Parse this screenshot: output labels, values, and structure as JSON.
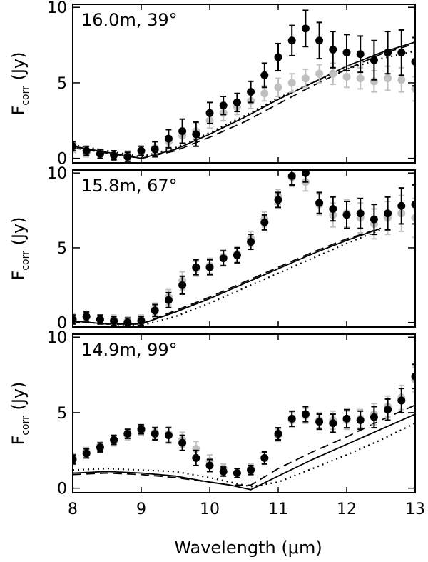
{
  "figure": {
    "xlabel": "Wavelength (μm)",
    "ylabel_main": "F",
    "ylabel_sub": "corr",
    "ylabel_unit": " (Jy)"
  },
  "chart_data": [
    {
      "type": "scatter",
      "title": "16.0m, 39°",
      "xlabel": "",
      "ylabel": "F_corr (Jy)",
      "xlim": [
        8,
        13
      ],
      "ylim": [
        -0.3,
        10.2
      ],
      "x_ticks": [
        "8",
        "9",
        "10",
        "11",
        "12",
        "13"
      ],
      "y_ticks": [
        {
          "value": 0,
          "label": "0"
        },
        {
          "value": 5,
          "label": "5"
        },
        {
          "value": 10,
          "label": "10"
        }
      ],
      "grid": false,
      "series": [
        {
          "style": "points",
          "color": "#c0c0c0",
          "x": [
            8.0,
            8.2,
            8.4,
            8.6,
            8.8,
            9.0,
            9.2,
            9.4,
            9.6,
            9.8,
            10.0,
            10.2,
            10.4,
            10.6,
            10.8,
            11.0,
            11.2,
            11.4,
            11.6,
            11.8,
            12.0,
            12.2,
            12.4,
            12.6,
            12.8,
            13.0
          ],
          "y": [
            0.7,
            0.4,
            0.3,
            0.2,
            0.2,
            0.5,
            0.7,
            1.1,
            1.5,
            1.8,
            2.5,
            3.0,
            3.4,
            3.8,
            4.3,
            4.7,
            5.0,
            5.3,
            5.6,
            5.6,
            5.4,
            5.3,
            5.1,
            5.3,
            5.2,
            4.6
          ],
          "yerr": [
            0.3,
            0.3,
            0.3,
            0.3,
            0.3,
            0.3,
            0.4,
            0.4,
            0.5,
            0.5,
            0.5,
            0.5,
            0.5,
            0.5,
            0.5,
            0.6,
            0.6,
            0.6,
            0.6,
            0.7,
            0.7,
            0.7,
            0.7,
            0.8,
            0.8,
            0.8
          ]
        },
        {
          "style": "points",
          "color": "#000000",
          "x": [
            8.0,
            8.2,
            8.4,
            8.6,
            8.8,
            9.0,
            9.2,
            9.4,
            9.6,
            9.8,
            10.0,
            10.2,
            10.4,
            10.6,
            10.8,
            11.0,
            11.2,
            11.4,
            11.6,
            11.8,
            12.0,
            12.2,
            12.4,
            12.6,
            12.8,
            13.0
          ],
          "y": [
            0.8,
            0.5,
            0.3,
            0.2,
            0.1,
            0.5,
            0.6,
            1.3,
            1.8,
            1.6,
            3.0,
            3.5,
            3.7,
            4.4,
            5.5,
            6.7,
            7.8,
            8.6,
            7.8,
            7.2,
            7.0,
            6.9,
            6.5,
            7.0,
            7.0,
            6.4
          ],
          "yerr": [
            0.3,
            0.3,
            0.3,
            0.3,
            0.3,
            0.3,
            0.5,
            0.6,
            0.8,
            0.8,
            0.7,
            0.6,
            0.6,
            0.7,
            0.8,
            0.9,
            1.0,
            1.2,
            1.2,
            1.2,
            1.2,
            1.2,
            1.3,
            1.4,
            1.5,
            1.6
          ]
        },
        {
          "style": "solid",
          "color": "#000000",
          "x": [
            8.0,
            9.0,
            9.5,
            10.0,
            10.5,
            11.0,
            11.5,
            12.0,
            12.5,
            13.0
          ],
          "y": [
            0.8,
            0.0,
            0.6,
            1.6,
            2.7,
            3.9,
            5.0,
            6.1,
            7.0,
            7.7
          ]
        },
        {
          "style": "dashed",
          "color": "#000000",
          "x": [
            8.0,
            9.0,
            9.5,
            10.0,
            10.5,
            11.0,
            11.5,
            12.0,
            12.5,
            13.0
          ],
          "y": [
            0.7,
            0.0,
            0.5,
            1.4,
            2.4,
            3.6,
            4.8,
            5.9,
            6.9,
            7.6
          ]
        },
        {
          "style": "dotted",
          "color": "#000000",
          "x": [
            8.0,
            9.0,
            9.5,
            10.0,
            10.5,
            11.0,
            11.5,
            12.0,
            12.5,
            13.0
          ],
          "y": [
            0.9,
            0.1,
            0.7,
            1.7,
            2.8,
            4.0,
            5.0,
            5.9,
            6.6,
            7.1
          ]
        }
      ]
    },
    {
      "type": "scatter",
      "title": "15.8m, 67°",
      "xlabel": "",
      "ylabel": "F_corr (Jy)",
      "xlim": [
        8,
        13
      ],
      "ylim": [
        -0.3,
        10.2
      ],
      "x_ticks": [
        "8",
        "9",
        "10",
        "11",
        "12",
        "13"
      ],
      "y_ticks": [
        {
          "value": 0,
          "label": "0"
        },
        {
          "value": 5,
          "label": "5"
        },
        {
          "value": 10,
          "label": "10"
        }
      ],
      "grid": false,
      "series": [
        {
          "style": "points",
          "color": "#c0c0c0",
          "x": [
            8.0,
            8.2,
            8.4,
            8.6,
            8.8,
            9.0,
            9.2,
            9.4,
            9.6,
            9.8,
            10.0,
            10.2,
            10.4,
            10.6,
            10.8,
            11.0,
            11.2,
            11.4,
            11.6,
            11.8,
            12.0,
            12.2,
            12.4,
            12.6,
            12.8,
            13.0
          ],
          "y": [
            0.3,
            0.4,
            0.2,
            0.2,
            0.1,
            0.2,
            0.9,
            1.7,
            2.8,
            3.6,
            3.8,
            4.4,
            4.6,
            5.6,
            6.9,
            8.4,
            9.7,
            9.4,
            7.9,
            7.2,
            7.3,
            7.0,
            6.6,
            7.0,
            7.3,
            7.0
          ],
          "yerr": [
            0.3,
            0.3,
            0.3,
            0.3,
            0.3,
            0.3,
            0.4,
            0.5,
            0.6,
            0.5,
            0.5,
            0.5,
            0.5,
            0.5,
            0.5,
            0.5,
            0.6,
            0.6,
            0.7,
            0.8,
            0.9,
            1.0,
            1.0,
            1.1,
            1.2,
            1.3
          ]
        },
        {
          "style": "points",
          "color": "#000000",
          "x": [
            8.0,
            8.2,
            8.4,
            8.6,
            8.8,
            9.0,
            9.2,
            9.4,
            9.6,
            9.8,
            10.0,
            10.2,
            10.4,
            10.6,
            10.8,
            11.0,
            11.2,
            11.4,
            11.6,
            11.8,
            12.0,
            12.2,
            12.4,
            12.6,
            12.8,
            13.0
          ],
          "y": [
            0.2,
            0.4,
            0.2,
            0.1,
            0.0,
            0.1,
            0.8,
            1.5,
            2.5,
            3.7,
            3.7,
            4.3,
            4.5,
            5.4,
            6.7,
            8.2,
            9.8,
            10.0,
            8.0,
            7.6,
            7.2,
            7.3,
            6.9,
            7.3,
            7.8,
            7.9
          ],
          "yerr": [
            0.3,
            0.3,
            0.3,
            0.3,
            0.3,
            0.3,
            0.4,
            0.5,
            0.6,
            0.5,
            0.5,
            0.5,
            0.5,
            0.5,
            0.5,
            0.5,
            0.6,
            0.6,
            0.7,
            0.8,
            0.9,
            1.0,
            1.0,
            1.1,
            1.2,
            1.3
          ]
        },
        {
          "style": "solid",
          "color": "#000000",
          "x": [
            8.0,
            8.5,
            9.0,
            9.5,
            10.0,
            10.5,
            11.0,
            11.5,
            12.0,
            12.5
          ],
          "y": [
            0.1,
            -0.1,
            -0.1,
            0.7,
            1.6,
            2.6,
            3.6,
            4.6,
            5.5,
            6.3
          ]
        },
        {
          "style": "dashed",
          "color": "#000000",
          "x": [
            8.0,
            8.5,
            9.0,
            9.5,
            10.0,
            10.5,
            11.0,
            11.5,
            12.0,
            12.5
          ],
          "y": [
            0.1,
            -0.1,
            -0.1,
            0.8,
            1.7,
            2.7,
            3.7,
            4.7,
            5.6,
            6.3
          ]
        },
        {
          "style": "dotted",
          "color": "#000000",
          "x": [
            8.0,
            8.5,
            9.0,
            9.5,
            10.0,
            10.5,
            11.0,
            11.5,
            12.0,
            12.5
          ],
          "y": [
            0.1,
            -0.1,
            -0.2,
            0.4,
            1.3,
            2.3,
            3.3,
            4.3,
            5.3,
            6.2
          ]
        }
      ]
    },
    {
      "type": "scatter",
      "title": "14.9m, 99°",
      "xlabel": "Wavelength (μm)",
      "ylabel": "F_corr (Jy)",
      "xlim": [
        8,
        13
      ],
      "ylim": [
        -0.3,
        10.2
      ],
      "x_ticks": [
        "8",
        "9",
        "10",
        "11",
        "12",
        "13"
      ],
      "y_ticks": [
        {
          "value": 0,
          "label": "0"
        },
        {
          "value": 5,
          "label": "5"
        },
        {
          "value": 10,
          "label": "10"
        }
      ],
      "grid": false,
      "series": [
        {
          "style": "points",
          "color": "#c0c0c0",
          "x": [
            8.0,
            8.2,
            8.4,
            8.6,
            8.8,
            9.0,
            9.2,
            9.4,
            9.6,
            9.8,
            10.0,
            10.2,
            10.4,
            10.6,
            10.8,
            11.0,
            11.2,
            11.4,
            11.6,
            11.8,
            12.0,
            12.2,
            12.4,
            12.6,
            12.8,
            13.0
          ],
          "y": [
            2.0,
            2.4,
            2.8,
            3.1,
            3.5,
            3.8,
            3.7,
            3.6,
            3.2,
            2.6,
            1.8,
            1.3,
            1.0,
            1.3,
            2.0,
            3.5,
            4.5,
            4.8,
            4.5,
            4.5,
            4.5,
            4.6,
            4.9,
            5.4,
            6.0,
            7.2
          ],
          "yerr": [
            0.3,
            0.3,
            0.3,
            0.3,
            0.3,
            0.3,
            0.4,
            0.5,
            0.5,
            0.5,
            0.4,
            0.3,
            0.3,
            0.3,
            0.4,
            0.4,
            0.5,
            0.5,
            0.5,
            0.6,
            0.6,
            0.6,
            0.7,
            0.7,
            0.8,
            0.8
          ]
        },
        {
          "style": "points",
          "color": "#000000",
          "x": [
            8.0,
            8.2,
            8.4,
            8.6,
            8.8,
            9.0,
            9.2,
            9.4,
            9.6,
            9.8,
            10.0,
            10.2,
            10.4,
            10.6,
            10.8,
            11.0,
            11.2,
            11.4,
            11.6,
            11.8,
            12.0,
            12.2,
            12.4,
            12.6,
            12.8,
            13.0
          ],
          "y": [
            1.9,
            2.3,
            2.7,
            3.2,
            3.6,
            3.9,
            3.6,
            3.5,
            3.0,
            2.0,
            1.5,
            1.1,
            1.0,
            1.2,
            2.0,
            3.6,
            4.6,
            4.9,
            4.4,
            4.3,
            4.6,
            4.5,
            4.7,
            5.2,
            5.8,
            7.4
          ],
          "yerr": [
            0.3,
            0.3,
            0.3,
            0.3,
            0.3,
            0.3,
            0.4,
            0.5,
            0.5,
            0.5,
            0.4,
            0.3,
            0.3,
            0.3,
            0.4,
            0.4,
            0.5,
            0.5,
            0.5,
            0.6,
            0.6,
            0.6,
            0.7,
            0.7,
            0.8,
            0.8
          ]
        },
        {
          "style": "solid",
          "color": "#000000",
          "x": [
            8.0,
            8.5,
            9.0,
            9.5,
            10.0,
            10.3,
            10.6,
            11.0,
            11.5,
            12.0,
            12.5,
            13.0
          ],
          "y": [
            1.0,
            1.1,
            1.0,
            0.8,
            0.4,
            0.2,
            -0.1,
            0.8,
            1.9,
            2.9,
            3.9,
            4.9
          ]
        },
        {
          "style": "dashed",
          "color": "#000000",
          "x": [
            8.0,
            8.5,
            9.0,
            9.5,
            10.0,
            10.3,
            10.6,
            11.0,
            11.5,
            12.0,
            12.5,
            13.0
          ],
          "y": [
            0.9,
            1.0,
            0.9,
            0.7,
            0.4,
            0.2,
            0.2,
            1.3,
            2.4,
            3.4,
            4.5,
            5.5
          ]
        },
        {
          "style": "dotted",
          "color": "#000000",
          "x": [
            8.0,
            8.5,
            9.0,
            9.5,
            10.0,
            10.3,
            10.6,
            11.0,
            11.5,
            12.0,
            12.5,
            13.0
          ],
          "y": [
            1.2,
            1.3,
            1.2,
            1.1,
            0.7,
            0.4,
            0.1,
            0.4,
            1.3,
            2.2,
            3.2,
            4.3
          ]
        }
      ]
    }
  ]
}
